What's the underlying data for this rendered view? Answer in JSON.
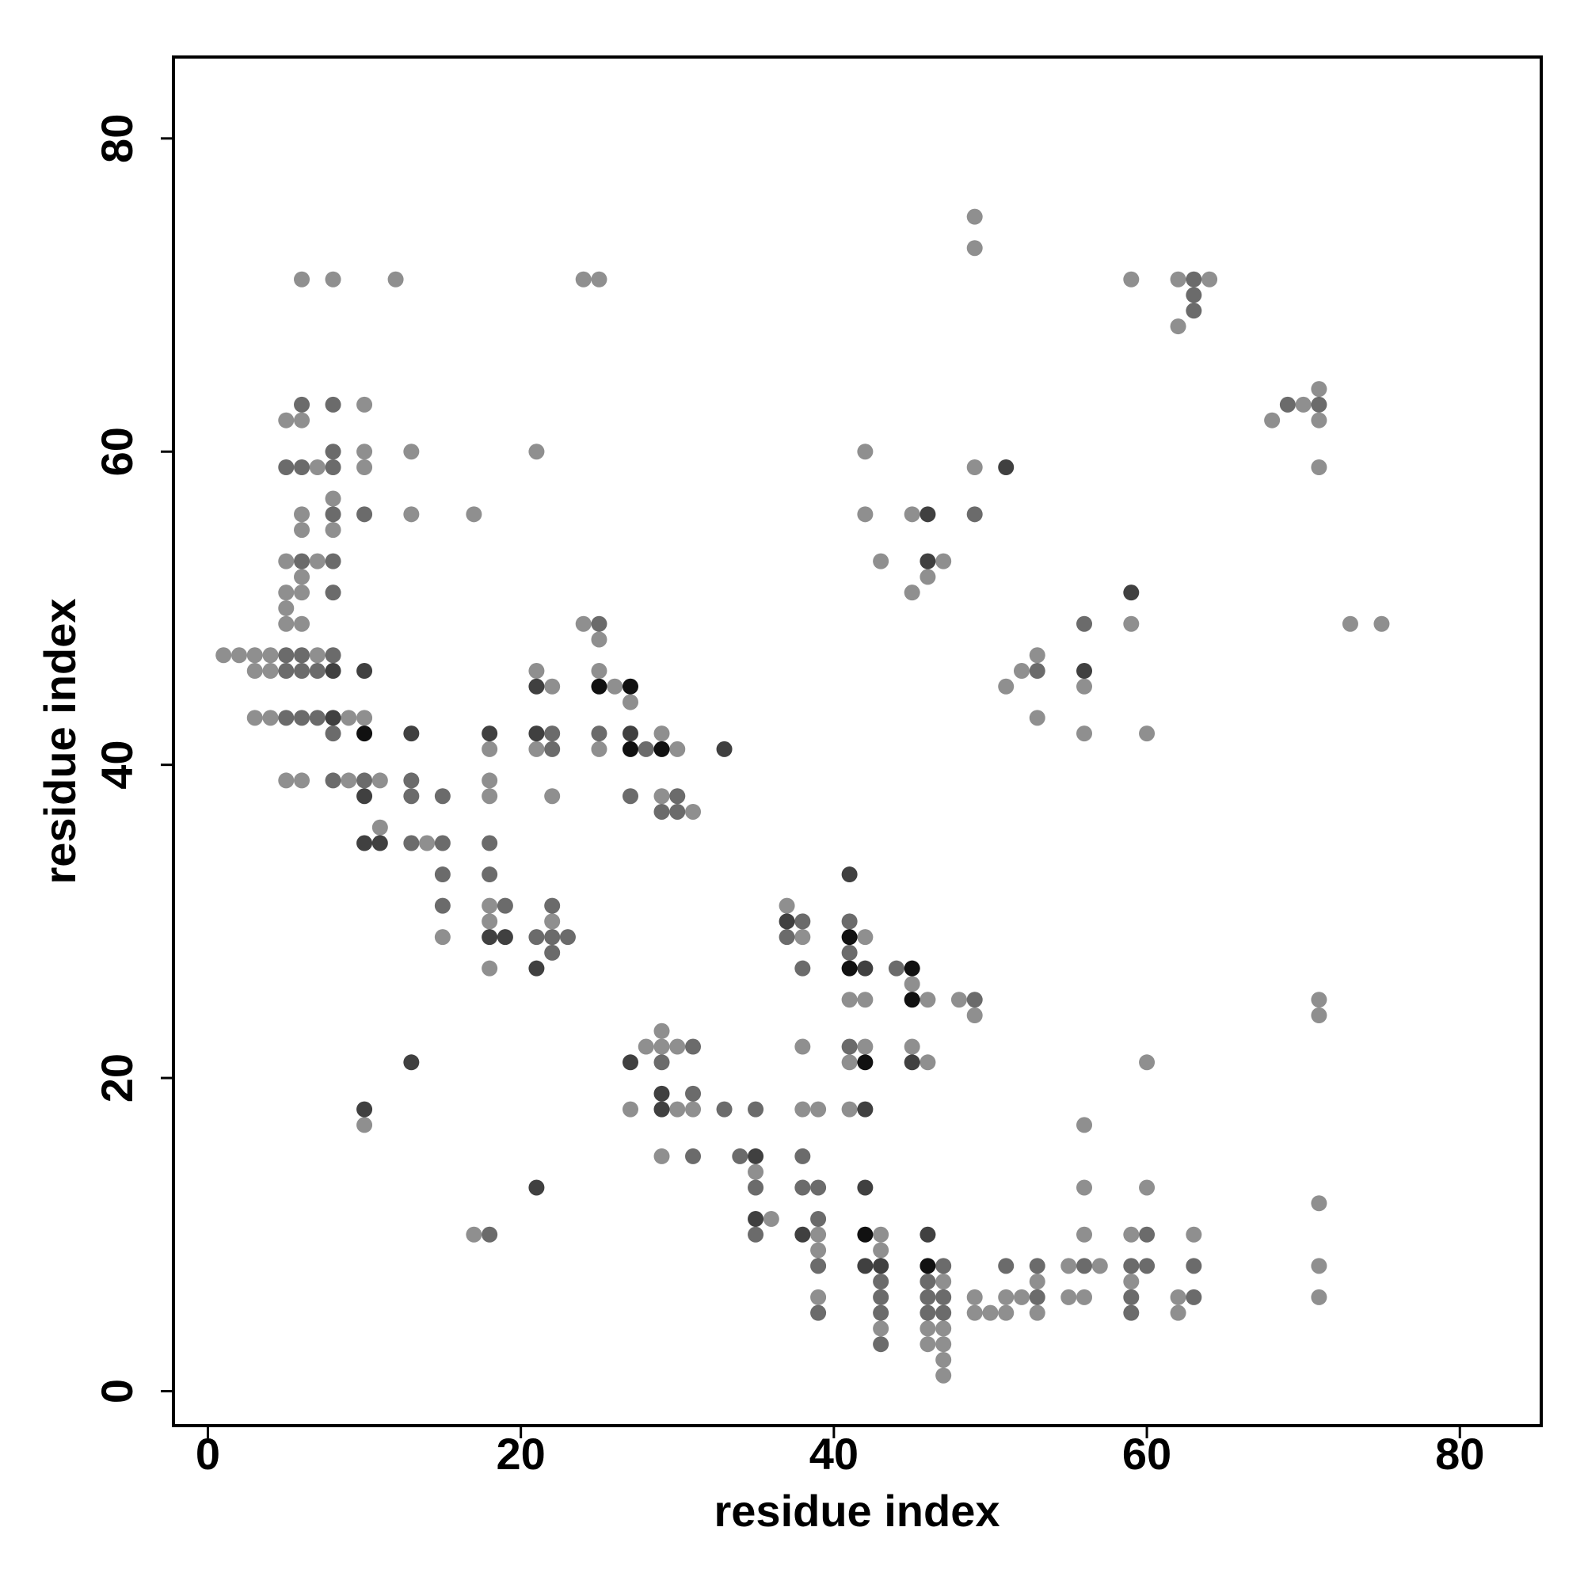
{
  "chart_data": {
    "type": "scatter",
    "x_label": "residue index",
    "y_label": "residue index",
    "xlim": [
      -2.2,
      85.2
    ],
    "ylim": [
      -2.2,
      85.2
    ],
    "xticks": [
      0,
      20,
      40,
      60,
      80
    ],
    "yticks": [
      0,
      20,
      40,
      60,
      80
    ],
    "grid": false,
    "series": [
      {
        "color": "#8f8f8f",
        "x": [
          49,
          49,
          6,
          8,
          12,
          24,
          25,
          59,
          62,
          64,
          62,
          71,
          10,
          70,
          5,
          6,
          68,
          71,
          10,
          13,
          21,
          42,
          7,
          10,
          49,
          71,
          8,
          6,
          13,
          17,
          42,
          45,
          6,
          8,
          5,
          7,
          43,
          47,
          6,
          46,
          5,
          6,
          45,
          5,
          5,
          6,
          24,
          59,
          73,
          75,
          25,
          1,
          2,
          3,
          4,
          7,
          53,
          3,
          4,
          21,
          25,
          52,
          22,
          26,
          51,
          56,
          27,
          3,
          4,
          9,
          10,
          53,
          29,
          56,
          60,
          18,
          21,
          25,
          30,
          5,
          6,
          9,
          11,
          18,
          18,
          22,
          29,
          31,
          11,
          14,
          18,
          37,
          18,
          22,
          15,
          38,
          42,
          18,
          45,
          41,
          42,
          46,
          48,
          71,
          49,
          71,
          29,
          28,
          29,
          30,
          38,
          42,
          45,
          41,
          46,
          60,
          27,
          30,
          31,
          38,
          39,
          41,
          10,
          56,
          29,
          35,
          56,
          60,
          71,
          36,
          17,
          39,
          43,
          56,
          59,
          63,
          39,
          43,
          55,
          57,
          71,
          47,
          53,
          59,
          39,
          49,
          51,
          52,
          55,
          56,
          62,
          71,
          49,
          50,
          51,
          53,
          62,
          43,
          46,
          47,
          46,
          47,
          47,
          47
        ],
        "values": [
          75,
          73,
          71,
          71,
          71,
          71,
          71,
          71,
          71,
          71,
          68,
          64,
          63,
          63,
          62,
          62,
          62,
          62,
          60,
          60,
          60,
          60,
          59,
          59,
          59,
          59,
          57,
          56,
          56,
          56,
          56,
          56,
          55,
          55,
          53,
          53,
          53,
          53,
          52,
          52,
          51,
          51,
          51,
          50,
          49,
          49,
          49,
          49,
          49,
          49,
          48,
          47,
          47,
          47,
          47,
          47,
          47,
          46,
          46,
          46,
          46,
          46,
          45,
          45,
          45,
          45,
          44,
          43,
          43,
          43,
          43,
          43,
          42,
          42,
          42,
          41,
          41,
          41,
          41,
          39,
          39,
          39,
          39,
          39,
          38,
          38,
          38,
          37,
          36,
          35,
          31,
          31,
          30,
          30,
          29,
          29,
          29,
          27,
          26,
          25,
          25,
          25,
          25,
          25,
          24,
          24,
          23,
          22,
          22,
          22,
          22,
          22,
          22,
          21,
          21,
          21,
          18,
          18,
          18,
          18,
          18,
          18,
          17,
          17,
          15,
          14,
          13,
          13,
          12,
          11,
          10,
          10,
          10,
          10,
          10,
          10,
          9,
          9,
          8,
          8,
          8,
          7,
          7,
          7,
          6,
          6,
          6,
          6,
          6,
          6,
          6,
          6,
          5,
          5,
          5,
          5,
          5,
          4,
          4,
          4,
          3,
          3,
          2,
          1
        ]
      },
      {
        "color": "#6b6b6b",
        "x": [
          63,
          63,
          63,
          6,
          8,
          69,
          71,
          8,
          5,
          6,
          8,
          8,
          10,
          49,
          6,
          8,
          8,
          25,
          56,
          5,
          6,
          8,
          5,
          6,
          7,
          53,
          5,
          6,
          7,
          8,
          22,
          25,
          22,
          28,
          8,
          10,
          13,
          13,
          15,
          27,
          30,
          29,
          30,
          13,
          15,
          18,
          15,
          18,
          15,
          19,
          22,
          38,
          41,
          21,
          22,
          23,
          37,
          22,
          41,
          38,
          44,
          49,
          31,
          41,
          29,
          33,
          35,
          31,
          31,
          34,
          38,
          35,
          38,
          39,
          39,
          18,
          35,
          60,
          39,
          47,
          51,
          53,
          56,
          59,
          60,
          63,
          43,
          46,
          43,
          46,
          47,
          53,
          59,
          63,
          39,
          43,
          46,
          47,
          59,
          43
        ],
        "values": [
          71,
          70,
          69,
          63,
          63,
          63,
          63,
          60,
          59,
          59,
          59,
          56,
          56,
          56,
          53,
          53,
          51,
          49,
          49,
          47,
          47,
          47,
          46,
          46,
          46,
          46,
          43,
          43,
          43,
          42,
          42,
          42,
          41,
          41,
          39,
          39,
          39,
          38,
          38,
          38,
          38,
          37,
          37,
          35,
          35,
          35,
          33,
          33,
          31,
          31,
          31,
          30,
          30,
          29,
          29,
          29,
          29,
          28,
          28,
          27,
          27,
          25,
          22,
          22,
          21,
          18,
          18,
          19,
          15,
          15,
          15,
          13,
          13,
          13,
          11,
          10,
          10,
          10,
          8,
          8,
          8,
          8,
          8,
          8,
          8,
          8,
          7,
          7,
          6,
          6,
          6,
          6,
          6,
          6,
          5,
          5,
          5,
          5,
          5,
          3
        ]
      },
      {
        "color": "#404040",
        "x": [
          51,
          46,
          46,
          59,
          8,
          10,
          56,
          21,
          8,
          13,
          18,
          21,
          27,
          33,
          10,
          10,
          11,
          41,
          37,
          18,
          19,
          21,
          42,
          13,
          27,
          45,
          10,
          29,
          42,
          29,
          35,
          21,
          42,
          35,
          38,
          46,
          42,
          43
        ],
        "values": [
          59,
          56,
          53,
          51,
          46,
          46,
          46,
          45,
          43,
          42,
          42,
          42,
          42,
          41,
          38,
          35,
          35,
          33,
          30,
          29,
          29,
          27,
          27,
          21,
          21,
          21,
          18,
          18,
          18,
          19,
          15,
          13,
          13,
          11,
          10,
          10,
          8,
          8
        ]
      },
      {
        "color": "#111111",
        "x": [
          10,
          25,
          27,
          27,
          29,
          41,
          41,
          45,
          45,
          42,
          42,
          46
        ],
        "values": [
          42,
          45,
          45,
          41,
          41,
          29,
          27,
          27,
          25,
          21,
          10,
          8
        ]
      }
    ]
  }
}
